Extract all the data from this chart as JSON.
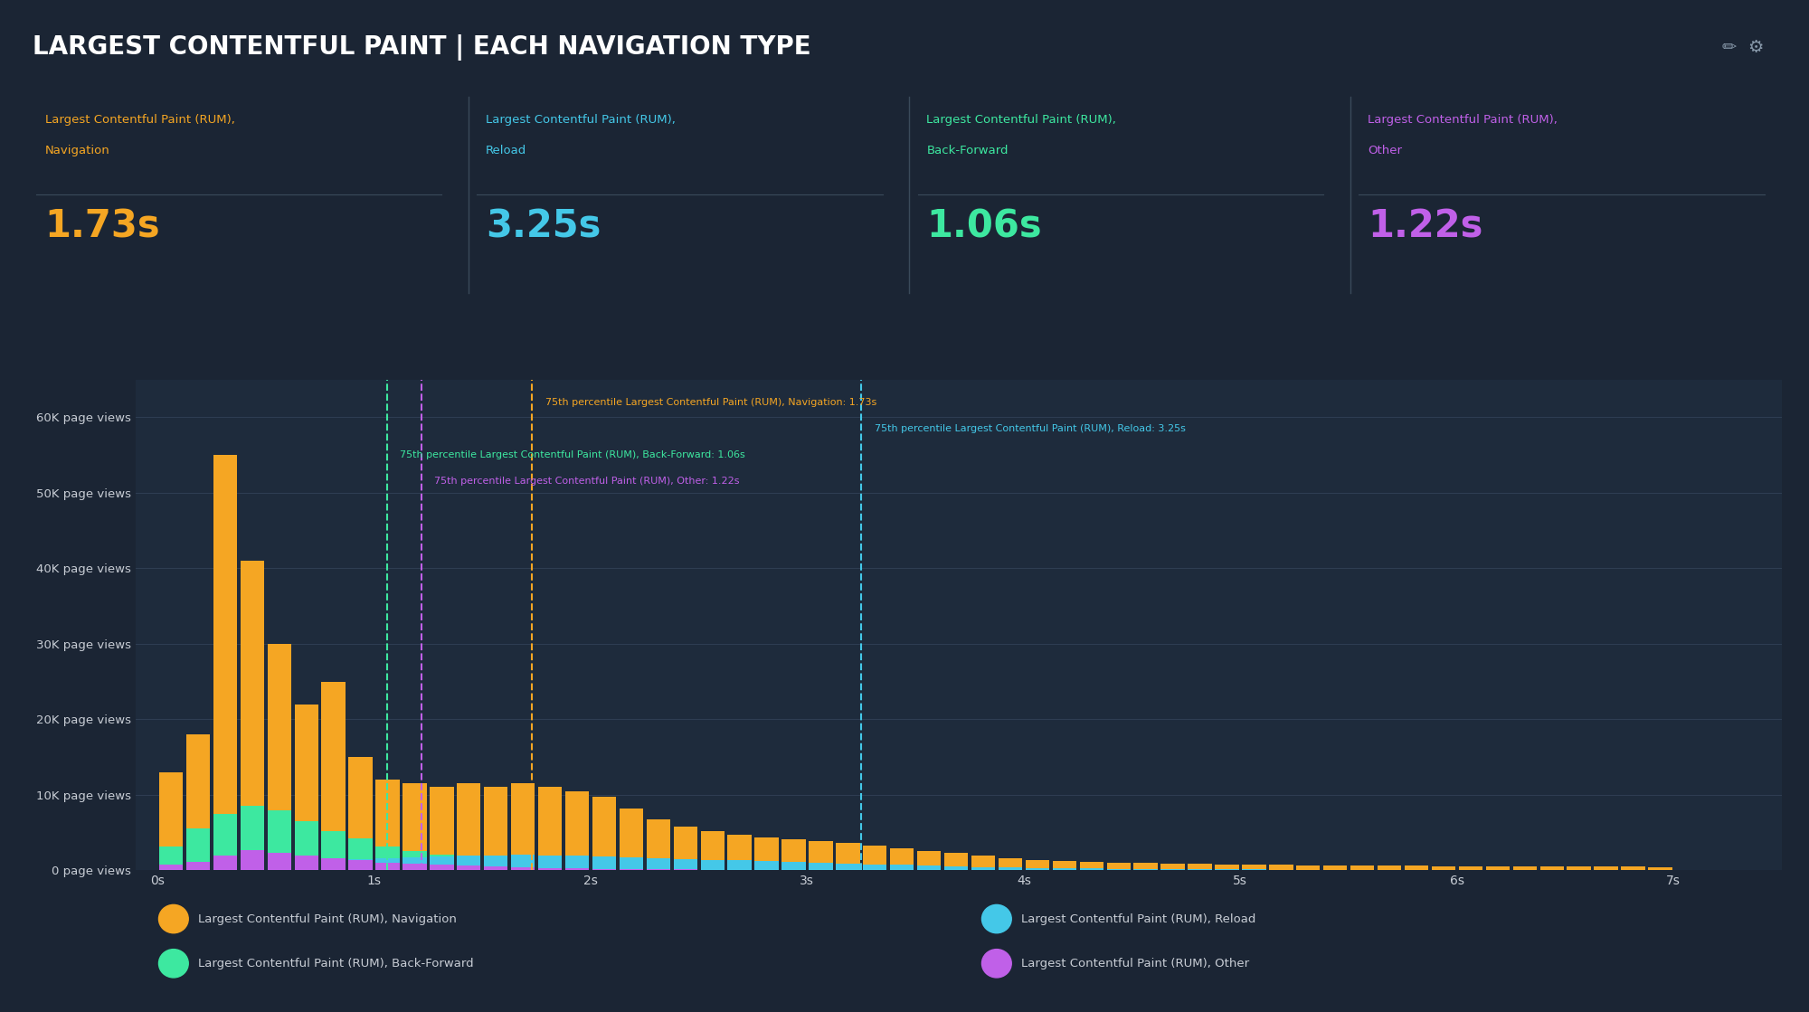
{
  "title": "LARGEST CONTENTFUL PAINT | EACH NAVIGATION TYPE",
  "bg_color": "#1b2534",
  "panel_bg": "#1e2b3c",
  "title_color": "#ffffff",
  "metrics": [
    {
      "line1": "Largest Contentful Paint (RUM),",
      "line2": "Navigation",
      "value": "1.73s",
      "color": "#f5a623"
    },
    {
      "line1": "Largest Contentful Paint (RUM),",
      "line2": "Reload",
      "value": "3.25s",
      "color": "#44c8e8"
    },
    {
      "line1": "Largest Contentful Paint (RUM),",
      "line2": "Back-Forward",
      "value": "1.06s",
      "color": "#3de8a0"
    },
    {
      "line1": "Largest Contentful Paint (RUM),",
      "line2": "Other",
      "value": "1.22s",
      "color": "#c060e8"
    }
  ],
  "ytick_labels": [
    "0 page views",
    "10K page views",
    "20K page views",
    "30K page views",
    "40K page views",
    "50K page views",
    "60K page views"
  ],
  "ytick_values": [
    0,
    10000,
    20000,
    30000,
    40000,
    50000,
    60000
  ],
  "xlabel_ticks": [
    "0s",
    "1s",
    "2s",
    "3s",
    "4s",
    "5s",
    "6s",
    "7s"
  ],
  "xtick_pos": [
    0,
    1,
    2,
    3,
    4,
    5,
    6,
    7
  ],
  "xlim": [
    -0.1,
    7.5
  ],
  "ylim": [
    0,
    65000
  ],
  "bar_width": 0.11,
  "nav_color": "#f5a623",
  "reload_color": "#44c8e8",
  "backfwd_color": "#3de8a0",
  "other_color": "#c060e8",
  "vline_nav_x": 1.73,
  "vline_reload_x": 3.25,
  "vline_backfwd_x": 1.06,
  "vline_other_x": 1.22,
  "annotation_nav": "75th percentile Largest Contentful Paint (RUM), Navigation: 1.73s",
  "annotation_reload": "75th percentile Largest Contentful Paint (RUM), Reload: 3.25s",
  "annotation_backfwd": "75th percentile Largest Contentful Paint (RUM), Back-Forward: 1.06s",
  "annotation_other": "75th percentile Largest Contentful Paint (RUM), Other: 1.22s",
  "bins_centers": [
    0.063,
    0.188,
    0.313,
    0.438,
    0.563,
    0.688,
    0.813,
    0.938,
    1.063,
    1.188,
    1.313,
    1.438,
    1.563,
    1.688,
    1.813,
    1.938,
    2.063,
    2.188,
    2.313,
    2.438,
    2.563,
    2.688,
    2.813,
    2.938,
    3.063,
    3.188,
    3.313,
    3.438,
    3.563,
    3.688,
    3.813,
    3.938,
    4.063,
    4.188,
    4.313,
    4.438,
    4.563,
    4.688,
    4.813,
    4.938,
    5.063,
    5.188,
    5.313,
    5.438,
    5.563,
    5.688,
    5.813,
    5.938,
    6.063,
    6.188,
    6.313,
    6.438,
    6.563,
    6.688,
    6.813,
    6.938
  ],
  "nav_values": [
    13000,
    18000,
    55000,
    41000,
    30000,
    22000,
    25000,
    15000,
    12000,
    11500,
    11000,
    11500,
    11000,
    11500,
    11000,
    10500,
    9800,
    8200,
    6800,
    5800,
    5200,
    4700,
    4400,
    4100,
    3900,
    3600,
    3300,
    2900,
    2600,
    2300,
    1900,
    1600,
    1400,
    1250,
    1150,
    1050,
    950,
    900,
    850,
    800,
    750,
    720,
    690,
    660,
    630,
    610,
    590,
    570,
    550,
    530,
    515,
    505,
    495,
    480,
    465,
    450
  ],
  "backfwd_values": [
    3200,
    5500,
    7500,
    8500,
    8000,
    6500,
    5200,
    4200,
    3200,
    2600,
    2100,
    1800,
    1500,
    1200,
    950,
    750,
    550,
    0,
    0,
    0,
    0,
    0,
    0,
    0,
    0,
    0,
    0,
    0,
    0,
    0,
    0,
    0,
    0,
    0,
    0,
    0,
    0,
    0,
    0,
    0,
    0,
    0,
    0,
    0,
    0,
    0,
    0,
    0,
    0,
    0,
    0,
    0,
    0,
    0,
    0,
    0
  ],
  "reload_values": [
    150,
    250,
    500,
    750,
    950,
    1100,
    1300,
    1500,
    1600,
    1700,
    1800,
    1900,
    2000,
    2100,
    2000,
    1900,
    1800,
    1700,
    1600,
    1500,
    1400,
    1300,
    1200,
    1100,
    1000,
    900,
    800,
    700,
    600,
    500,
    430,
    360,
    300,
    270,
    240,
    210,
    180,
    160,
    140,
    120,
    110,
    100,
    90,
    80,
    0,
    0,
    0,
    0,
    0,
    0,
    0,
    0,
    0,
    0,
    0,
    0
  ],
  "other_values": [
    700,
    1100,
    2000,
    2700,
    2300,
    1900,
    1600,
    1300,
    1050,
    850,
    700,
    580,
    480,
    390,
    320,
    260,
    200,
    165,
    135,
    110,
    0,
    0,
    0,
    0,
    0,
    0,
    0,
    0,
    0,
    0,
    0,
    0,
    0,
    0,
    0,
    0,
    0,
    0,
    0,
    0,
    0,
    0,
    0,
    0,
    0,
    0,
    0,
    0,
    0,
    0,
    0,
    0,
    0,
    0,
    0,
    0
  ],
  "legend_entries": [
    {
      "label": "Largest Contentful Paint (RUM), Navigation",
      "color": "#f5a623"
    },
    {
      "label": "Largest Contentful Paint (RUM), Reload",
      "color": "#44c8e8"
    },
    {
      "label": "Largest Contentful Paint (RUM), Back-Forward",
      "color": "#3de8a0"
    },
    {
      "label": "Largest Contentful Paint (RUM), Other",
      "color": "#c060e8"
    }
  ]
}
